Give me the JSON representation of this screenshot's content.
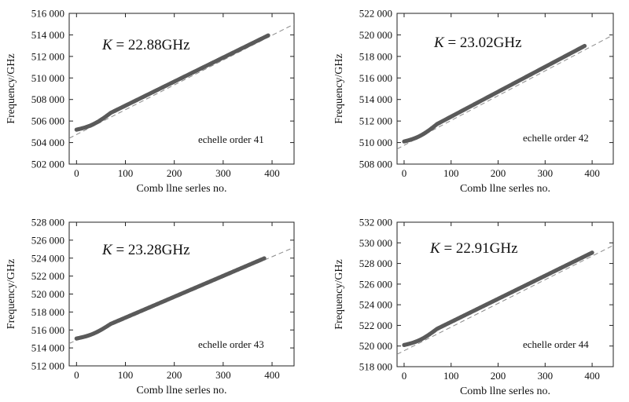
{
  "chart_data": [
    {
      "type": "scatter",
      "k_prefix": "K",
      "k_value": " = 22.88GHz",
      "annotation": "echelle order 41",
      "xlabel": "Comb llne serles no.",
      "ylabel": "Frequency/GHz",
      "xlim": [
        -15,
        445
      ],
      "ylim": [
        502000,
        516000
      ],
      "xticks": [
        0,
        100,
        200,
        300,
        400
      ],
      "xtick_labels": [
        "0",
        "100",
        "200",
        "300",
        "400"
      ],
      "yticks": [
        502000,
        504000,
        506000,
        508000,
        510000,
        512000,
        514000,
        516000
      ],
      "ytick_labels": [
        "502 000",
        "504 000",
        "506 000",
        "508 000",
        "510 000",
        "512 000",
        "514 000",
        "516 000"
      ],
      "series": [
        {
          "name": "comb lines",
          "x_start": 0,
          "x_end": 392,
          "y_start": 505200,
          "y_end": 513950
        }
      ],
      "fit_line": {
        "x": [
          -15,
          445
        ],
        "y": [
          504400,
          515000
        ]
      }
    },
    {
      "type": "scatter",
      "k_prefix": "K",
      "k_value": " = 23.02GHz",
      "annotation": "echelle order 42",
      "xlabel": "Comb llne serles no.",
      "ylabel": "Frequency/GHz",
      "xlim": [
        -15,
        445
      ],
      "ylim": [
        508000,
        522000
      ],
      "xticks": [
        0,
        100,
        200,
        300,
        400
      ],
      "xtick_labels": [
        "0",
        "100",
        "200",
        "300",
        "400"
      ],
      "yticks": [
        508000,
        510000,
        512000,
        514000,
        516000,
        518000,
        520000,
        522000
      ],
      "ytick_labels": [
        "508 000",
        "510 000",
        "512 000",
        "514 000",
        "516 000",
        "518 000",
        "520 000",
        "522 000"
      ],
      "series": [
        {
          "name": "comb lines",
          "x_start": 0,
          "x_end": 385,
          "y_start": 510100,
          "y_end": 519000
        }
      ],
      "fit_line": {
        "x": [
          -15,
          445
        ],
        "y": [
          509400,
          520000
        ]
      }
    },
    {
      "type": "scatter",
      "k_prefix": "K",
      "k_value": " = 23.28GHz",
      "annotation": "echelle order 43",
      "xlabel": "Comb llne serles no.",
      "ylabel": "Frequency/GHz",
      "xlim": [
        -15,
        445
      ],
      "ylim": [
        512000,
        528000
      ],
      "xticks": [
        0,
        100,
        200,
        300,
        400
      ],
      "xtick_labels": [
        "0",
        "100",
        "200",
        "300",
        "400"
      ],
      "yticks": [
        512000,
        514000,
        516000,
        518000,
        520000,
        522000,
        524000,
        526000,
        528000
      ],
      "ytick_labels": [
        "512 000",
        "514 000",
        "516 000",
        "518 000",
        "520 000",
        "522 000",
        "524 000",
        "526 000",
        "528 000"
      ],
      "series": [
        {
          "name": "comb lines",
          "x_start": 0,
          "x_end": 385,
          "y_start": 515050,
          "y_end": 524000
        }
      ],
      "fit_line": {
        "x": [
          -15,
          445
        ],
        "y": [
          514500,
          525200
        ]
      }
    },
    {
      "type": "scatter",
      "k_prefix": "K",
      "k_value": " = 22.91GHz",
      "annotation": "echelle order 44",
      "xlabel": "Comb llne serles no.",
      "ylabel": "Frequency/GHz",
      "xlim": [
        -15,
        445
      ],
      "ylim": [
        518000,
        532000
      ],
      "xticks": [
        0,
        100,
        200,
        300,
        400
      ],
      "xtick_labels": [
        "0",
        "100",
        "200",
        "300",
        "400"
      ],
      "yticks": [
        518000,
        520000,
        522000,
        524000,
        526000,
        528000,
        530000,
        532000
      ],
      "ytick_labels": [
        "518 000",
        "520 000",
        "522 000",
        "524 000",
        "526 000",
        "528 000",
        "530 000",
        "532 000"
      ],
      "series": [
        {
          "name": "comb lines",
          "x_start": 0,
          "x_end": 400,
          "y_start": 520100,
          "y_end": 529050
        }
      ],
      "fit_line": {
        "x": [
          -15,
          445
        ],
        "y": [
          519200,
          529750
        ]
      }
    }
  ]
}
